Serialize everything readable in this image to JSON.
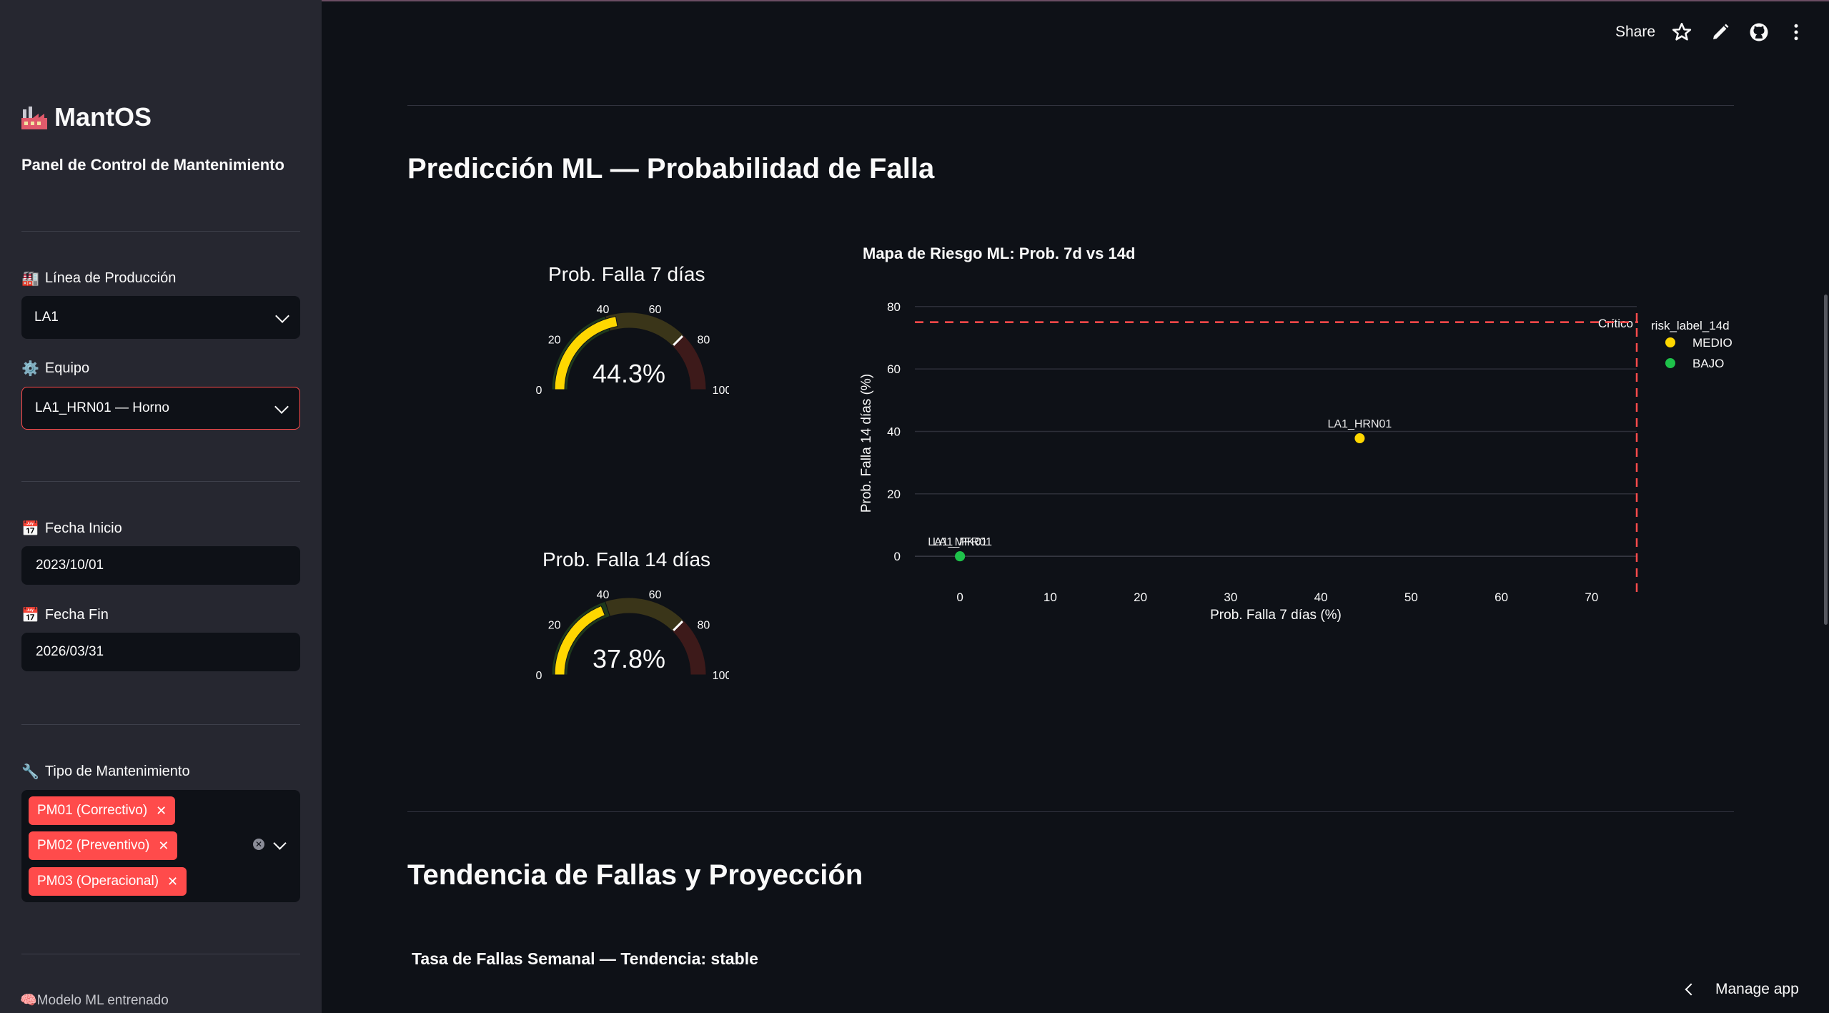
{
  "sidebar": {
    "brand": "MantOS",
    "subtitle": "Panel de Control de Mantenimiento",
    "linea_label": "Línea de Producción",
    "linea_value": "LA1",
    "equipo_label": "Equipo",
    "equipo_value": "LA1_HRN01 — Horno",
    "fecha_inicio_label": "Fecha Inicio",
    "fecha_inicio_value": "2023/10/01",
    "fecha_fin_label": "Fecha Fin",
    "fecha_fin_value": "2026/03/31",
    "tipo_label": "Tipo de Mantenimiento",
    "tipo_tags": [
      "PM01 (Correctivo)",
      "PM02 (Preventivo)",
      "PM03 (Operacional)"
    ],
    "ml_status": "Modelo ML entrenado"
  },
  "header": {
    "share_label": "Share",
    "icons": [
      "star-icon",
      "pencil-icon",
      "github-icon",
      "more-vertical-icon"
    ]
  },
  "main": {
    "section1_title": "Predicción ML — Probabilidad de Falla",
    "section2_title": "Tendencia de Fallas y Proyección",
    "section2_subtitle": "Tasa de Fallas Semanal — Tendencia: stable"
  },
  "gauges": [
    {
      "title": "Prob. Falla 7 días",
      "value": 44.3,
      "display": "44.3%",
      "threshold": 75,
      "ticks": [
        "0",
        "20",
        "40",
        "60",
        "80",
        "100"
      ]
    },
    {
      "title": "Prob. Falla 14 días",
      "value": 37.8,
      "display": "37.8%",
      "threshold": 75,
      "ticks": [
        "0",
        "20",
        "40",
        "60",
        "80",
        "100"
      ]
    }
  ],
  "chart_data": {
    "type": "scatter",
    "title": "Mapa de Riesgo ML: Prob. 7d vs 14d",
    "xlabel": "Prob. Falla 7 días (%)",
    "ylabel": "Prob. Falla 14 días (%)",
    "xlim": [
      -5,
      75
    ],
    "ylim": [
      -5,
      82
    ],
    "x_ticks": [
      0,
      10,
      20,
      30,
      40,
      50,
      60,
      70
    ],
    "y_ticks": [
      0,
      20,
      40,
      60,
      80
    ],
    "legend_title": "risk_label_14d",
    "legend_position": "right",
    "threshold_label": "Crítico",
    "threshold_x": 75,
    "threshold_y": 75,
    "series": [
      {
        "name": "MEDIO",
        "color": "#ffd700",
        "points": [
          {
            "label": "LA1_HRN01",
            "x": 44.3,
            "y": 37.8
          }
        ]
      },
      {
        "name": "BAJO",
        "color": "#1ec24a",
        "points": [
          {
            "label": "LA1_MFR01",
            "x": 0,
            "y": 0
          },
          {
            "label": "LA1_PK01",
            "x": 0,
            "y": 0
          }
        ]
      }
    ]
  }
}
